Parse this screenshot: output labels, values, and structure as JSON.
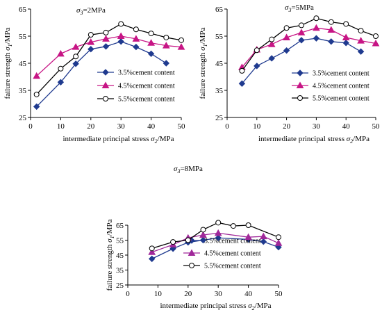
{
  "chart_data": [
    {
      "type": "line",
      "title": "σ3=2MPa",
      "title_parts": {
        "sym": "σ",
        "sub": "3",
        "rest": "=2MPa"
      },
      "xlabel": "intermediate principal stress σ2/MPa",
      "xlabel_parts": {
        "text": "intermediate principal stress ",
        "sym": "σ",
        "sub": "2",
        "unit": "/MPa"
      },
      "ylabel": "failure strength σ1/MPa",
      "ylabel_parts": {
        "text": "failure strength ",
        "sym": "σ",
        "sub": "1",
        "unit": "/MPa"
      },
      "xlim": [
        0,
        50
      ],
      "ylim": [
        25,
        65
      ],
      "xticks": [
        "0",
        "10",
        "20",
        "30",
        "40",
        "50"
      ],
      "yticks": [
        "25",
        "35",
        "45",
        "55",
        "65"
      ],
      "legend_position": "bottom-right",
      "series": [
        {
          "name": "3.5%cement content",
          "marker": "diamond",
          "color": "#1f3a8f",
          "x": [
            2,
            10,
            15,
            20,
            25,
            30,
            35,
            40,
            45
          ],
          "y": [
            29,
            38,
            44.8,
            50.2,
            51.2,
            53,
            51,
            48.5,
            45
          ]
        },
        {
          "name": "4.5%cement content",
          "marker": "triangle",
          "color": "#c71585",
          "x": [
            2,
            10,
            15,
            20,
            25,
            30,
            35,
            40,
            45,
            50
          ],
          "y": [
            40.3,
            48.5,
            51,
            52.8,
            54,
            55,
            54,
            52.5,
            51.5,
            51
          ]
        },
        {
          "name": "5.5%cement content",
          "marker": "circle",
          "color": "#000000",
          "x": [
            2,
            10,
            15,
            20,
            25,
            30,
            35,
            40,
            45,
            50
          ],
          "y": [
            33.5,
            43,
            47.5,
            55.5,
            56.3,
            59.5,
            57.5,
            56,
            54.5,
            53.5
          ]
        }
      ]
    },
    {
      "type": "line",
      "title": "σ3=5MPa",
      "title_parts": {
        "sym": "σ",
        "sub": "3",
        "rest": "=5MPa"
      },
      "xlabel": "intermediate principal stress σ2/MPa",
      "xlabel_parts": {
        "text": "intermediate principal stress ",
        "sym": "σ",
        "sub": "2",
        "unit": "/MPa"
      },
      "ylabel": "failure strength σ1/MPa",
      "ylabel_parts": {
        "text": "failure strength ",
        "sym": "σ",
        "sub": "1",
        "unit": "/MPa"
      },
      "xlim": [
        0,
        50
      ],
      "ylim": [
        25,
        65
      ],
      "xticks": [
        "0",
        "10",
        "20",
        "30",
        "40",
        "50"
      ],
      "yticks": [
        "25",
        "35",
        "45",
        "55",
        "65"
      ],
      "legend_position": "bottom-right",
      "series": [
        {
          "name": "3.5%cement content",
          "marker": "diamond",
          "color": "#1f3a8f",
          "x": [
            5,
            10,
            15,
            20,
            25,
            30,
            35,
            40,
            45
          ],
          "y": [
            37.5,
            44,
            46.8,
            49.7,
            53.5,
            54.2,
            53,
            52.5,
            49.3
          ]
        },
        {
          "name": "4.5%cement content",
          "marker": "triangle",
          "color": "#c71585",
          "x": [
            5,
            10,
            15,
            20,
            25,
            30,
            35,
            40,
            45,
            50
          ],
          "y": [
            43.5,
            50,
            52,
            54.5,
            56.3,
            58,
            57.3,
            54.5,
            53.3,
            52.3
          ]
        },
        {
          "name": "5.5%cement content",
          "marker": "circle",
          "color": "#000000",
          "x": [
            5,
            10,
            15,
            20,
            25,
            30,
            35,
            40,
            45,
            50
          ],
          "y": [
            42.2,
            49.8,
            53.8,
            58,
            59,
            61.6,
            60.2,
            59.5,
            57,
            55
          ]
        }
      ]
    },
    {
      "type": "line",
      "title": "σ3=8MPa",
      "title_parts": {
        "sym": "σ",
        "sub": "3",
        "rest": "=8MPa"
      },
      "xlabel": "intermediate principal stress σ2/MPa",
      "xlabel_parts": {
        "text": "intermediate principal stress ",
        "sym": "σ",
        "sub": "2",
        "unit": "/MPa"
      },
      "ylabel": "failure strength σ1/MPa",
      "ylabel_parts": {
        "text": "failure strength ",
        "sym": "σ",
        "sub": "1",
        "unit": "/MPa"
      },
      "xlim": [
        0,
        50
      ],
      "ylim": [
        25,
        65
      ],
      "xticks": [
        "0",
        "10",
        "20",
        "30",
        "40",
        "50"
      ],
      "yticks": [
        "25",
        "35",
        "45",
        "55",
        "65"
      ],
      "legend_position": "bottom-center",
      "series": [
        {
          "name": "3.5%cement content",
          "marker": "diamond",
          "color": "#1f3a8f",
          "x": [
            8,
            15,
            20,
            25,
            30,
            40,
            45,
            50
          ],
          "y": [
            42.5,
            49.3,
            53.5,
            55,
            56.5,
            55.5,
            54,
            50.3
          ]
        },
        {
          "name": "4.5%cement content",
          "marker": "triangle",
          "color": "#a0289a",
          "x": [
            8,
            15,
            20,
            25,
            30,
            40,
            45,
            50
          ],
          "y": [
            47,
            52,
            56.5,
            58.5,
            59.7,
            57,
            57.5,
            53
          ]
        },
        {
          "name": "5.5%cement content",
          "marker": "circle",
          "color": "#000000",
          "x": [
            8,
            15,
            20,
            25,
            30,
            35,
            40,
            50
          ],
          "y": [
            49.5,
            53.8,
            55,
            62,
            66.7,
            64.5,
            65,
            57
          ]
        }
      ]
    }
  ]
}
